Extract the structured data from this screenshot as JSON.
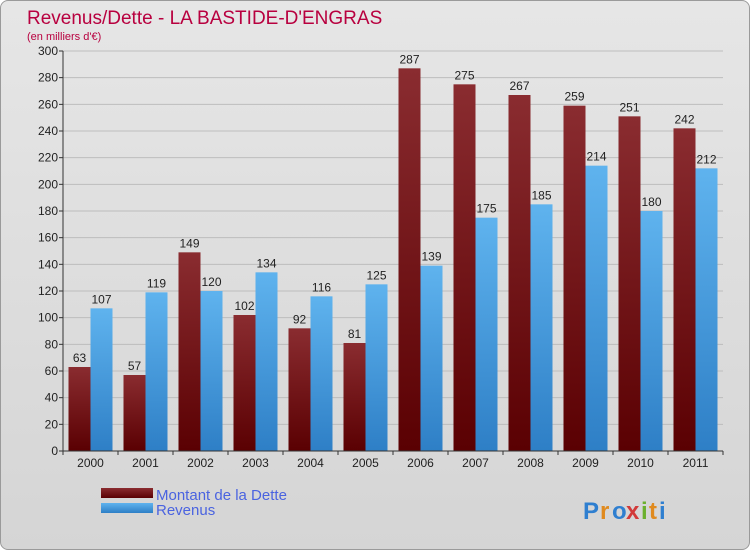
{
  "chart_data": {
    "type": "bar",
    "title": "Revenus/Dette - LA BASTIDE-D'ENGRAS",
    "subtitle": "(en milliers d'€)",
    "categories": [
      "2000",
      "2001",
      "2002",
      "2003",
      "2004",
      "2005",
      "2006",
      "2007",
      "2008",
      "2009",
      "2010",
      "2011"
    ],
    "series": [
      {
        "name": "Montant de la Dette",
        "values": [
          63,
          57,
          149,
          102,
          92,
          81,
          287,
          275,
          267,
          259,
          251,
          242
        ],
        "color": "#6b0f12"
      },
      {
        "name": "Revenus",
        "values": [
          107,
          119,
          120,
          134,
          116,
          125,
          139,
          175,
          185,
          214,
          180,
          212
        ],
        "color": "#3f9fe6"
      }
    ],
    "ylim": [
      0,
      300
    ],
    "yticks": [
      0,
      20,
      40,
      60,
      80,
      100,
      120,
      140,
      160,
      180,
      200,
      220,
      240,
      260,
      280,
      300
    ],
    "grid": true,
    "legend_position": "bottom-left"
  },
  "colors": {
    "title": "#b8003f",
    "legend_text": "#4a63e0",
    "axis_text": "#222222",
    "grid": "#bdbdbd"
  },
  "brand": {
    "logo_text": "Proxiti",
    "logo_colors": [
      "#2f7fd0",
      "#e08a1e",
      "#2f7fd0",
      "#d23a3a",
      "#6bb02e",
      "#e08a1e",
      "#2f7fd0"
    ]
  }
}
